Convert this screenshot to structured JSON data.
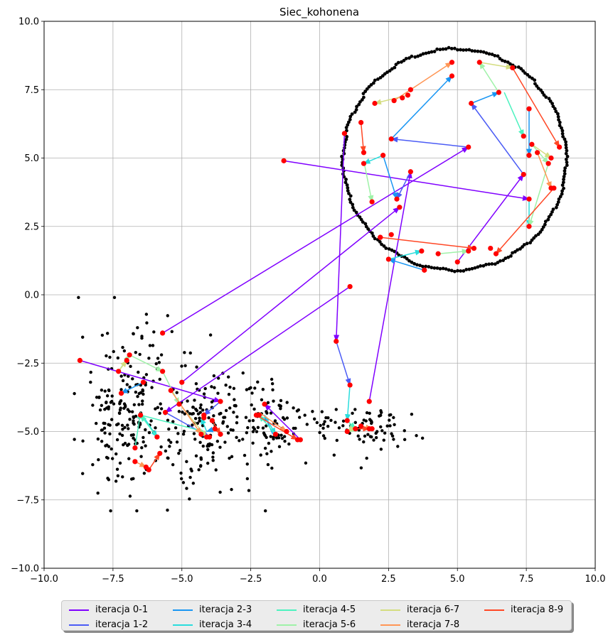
{
  "chart_data": {
    "type": "scatter",
    "title": "Siec_kohonena",
    "xlim": [
      -10,
      10
    ],
    "ylim": [
      -10,
      10
    ],
    "xticks": [
      -10,
      -7.5,
      -5,
      -2.5,
      0,
      2.5,
      5,
      7.5,
      10
    ],
    "yticks": [
      -10,
      -7.5,
      -5,
      -2.5,
      0,
      2.5,
      5,
      7.5,
      10
    ],
    "xtick_labels": [
      "−10.0",
      "−7.5",
      "−5.0",
      "−2.5",
      "0.0",
      "2.5",
      "5.0",
      "7.5",
      "10.0"
    ],
    "ytick_labels": [
      "−10.0",
      "−7.5",
      "−5.0",
      "−2.5",
      "0.0",
      "2.5",
      "5.0",
      "7.5",
      "10.0"
    ],
    "grid": true,
    "legend_position": "bottom-center",
    "ring": {
      "center": [
        4.9,
        4.95
      ],
      "radius": 4.05,
      "n_points": 240,
      "color": "#000000"
    },
    "cluster": {
      "n_points": 520,
      "color": "#000000",
      "seed": 7,
      "blobs": [
        {
          "cx": -7.0,
          "cy": -4.2,
          "sx": 0.85,
          "sy": 1.55,
          "n": 200
        },
        {
          "cx": -4.2,
          "cy": -4.7,
          "sx": 0.9,
          "sy": 1.05,
          "n": 150
        },
        {
          "cx": -1.8,
          "cy": -4.7,
          "sx": 0.75,
          "sy": 0.8,
          "n": 90
        },
        {
          "cx": 1.5,
          "cy": -4.9,
          "sx": 1.0,
          "sy": 0.45,
          "n": 80
        }
      ]
    },
    "neuron_color": "#ff0000",
    "series": [
      {
        "name": "iteracja 0-1",
        "color": "#8000ff",
        "segments": [
          [
            [
              -1.3,
              4.9
            ],
            [
              7.6,
              3.5
            ]
          ],
          [
            [
              1.8,
              -3.9
            ],
            [
              3.3,
              4.5
            ]
          ],
          [
            [
              -5.7,
              -1.4
            ],
            [
              5.4,
              5.4
            ]
          ],
          [
            [
              -5.0,
              -3.2
            ],
            [
              2.9,
              3.2
            ]
          ],
          [
            [
              1.1,
              0.3
            ],
            [
              -5.6,
              -4.3
            ]
          ],
          [
            [
              0.9,
              5.9
            ],
            [
              0.6,
              -1.7
            ]
          ],
          [
            [
              -8.7,
              -2.4
            ],
            [
              -3.6,
              -3.9
            ]
          ],
          [
            [
              5.0,
              1.2
            ],
            [
              7.4,
              4.4
            ]
          ],
          [
            [
              -0.7,
              -5.3
            ],
            [
              -2.0,
              -4.0
            ]
          ]
        ]
      },
      {
        "name": "iteracja 1-2",
        "color": "#4b5cf5",
        "segments": [
          [
            [
              5.4,
              5.4
            ],
            [
              2.6,
              5.7
            ]
          ],
          [
            [
              7.4,
              4.4
            ],
            [
              5.5,
              7.0
            ]
          ],
          [
            [
              3.3,
              4.5
            ],
            [
              2.8,
              3.5
            ]
          ],
          [
            [
              0.6,
              -1.7
            ],
            [
              1.1,
              -3.3
            ]
          ],
          [
            [
              -5.6,
              -4.3
            ],
            [
              -4.0,
              -5.2
            ]
          ],
          [
            [
              -3.6,
              -3.9
            ],
            [
              -4.2,
              -4.4
            ]
          ]
        ]
      },
      {
        "name": "iteracja 2-3",
        "color": "#1996f3",
        "segments": [
          [
            [
              2.6,
              5.7
            ],
            [
              4.8,
              8.0
            ]
          ],
          [
            [
              5.5,
              7.0
            ],
            [
              6.5,
              7.4
            ]
          ],
          [
            [
              7.6,
              6.8
            ],
            [
              7.6,
              5.1
            ]
          ],
          [
            [
              2.3,
              5.1
            ],
            [
              2.8,
              3.5
            ]
          ],
          [
            [
              3.8,
              0.9
            ],
            [
              2.5,
              1.3
            ]
          ],
          [
            [
              -6.4,
              -3.2
            ],
            [
              -7.2,
              -3.6
            ]
          ],
          [
            [
              -3.8,
              -4.9
            ],
            [
              -4.1,
              -5.0
            ]
          ],
          [
            [
              -1.7,
              -5.1
            ],
            [
              -2.0,
              -4.4
            ]
          ]
        ]
      },
      {
        "name": "iteracja 3-4",
        "color": "#2adddd",
        "segments": [
          [
            [
              1.1,
              -3.3
            ],
            [
              1.0,
              -4.6
            ]
          ],
          [
            [
              2.3,
              5.1
            ],
            [
              1.6,
              4.8
            ]
          ],
          [
            [
              7.6,
              3.5
            ],
            [
              7.6,
              2.5
            ]
          ],
          [
            [
              2.5,
              1.3
            ],
            [
              3.7,
              1.6
            ]
          ],
          [
            [
              -6.5,
              -4.3
            ],
            [
              -5.9,
              -5.2
            ]
          ],
          [
            [
              -4.1,
              -5.0
            ],
            [
              -4.3,
              -4.5
            ]
          ],
          [
            [
              -2.0,
              -4.4
            ],
            [
              -1.6,
              -5.1
            ]
          ]
        ]
      },
      {
        "name": "iteracja 4-5",
        "color": "#4df2bf",
        "segments": [
          [
            [
              6.7,
              7.4
            ],
            [
              7.4,
              5.8
            ]
          ],
          [
            [
              -6.7,
              -5.6
            ],
            [
              -6.5,
              -4.3
            ]
          ],
          [
            [
              -5.9,
              -5.2
            ],
            [
              -6.5,
              -4.4
            ]
          ],
          [
            [
              -6.5,
              -4.4
            ],
            [
              -4.2,
              -5.0
            ]
          ],
          [
            [
              -1.6,
              -5.1
            ],
            [
              -2.2,
              -4.4
            ]
          ],
          [
            [
              1.0,
              -4.6
            ],
            [
              1.3,
              -4.9
            ]
          ]
        ]
      },
      {
        "name": "iteracja 5-6",
        "color": "#9ff2a8",
        "segments": [
          [
            [
              -7.3,
              -2.8
            ],
            [
              -6.9,
              -2.2
            ]
          ],
          [
            [
              -6.9,
              -2.2
            ],
            [
              -5.7,
              -2.8
            ]
          ],
          [
            [
              -5.7,
              -2.8
            ],
            [
              -5.1,
              -4.0
            ]
          ],
          [
            [
              7.7,
              5.5
            ],
            [
              8.3,
              4.8
            ]
          ],
          [
            [
              8.3,
              4.8
            ],
            [
              7.6,
              2.5
            ]
          ],
          [
            [
              1.6,
              4.9
            ],
            [
              1.9,
              3.4
            ]
          ],
          [
            [
              6.5,
              7.4
            ],
            [
              5.8,
              8.5
            ]
          ],
          [
            [
              4.3,
              1.5
            ],
            [
              5.4,
              1.6
            ]
          ],
          [
            [
              1.3,
              -4.9
            ],
            [
              1.1,
              -5.0
            ]
          ]
        ]
      },
      {
        "name": "iteracja 6-7",
        "color": "#d4dd80",
        "segments": [
          [
            [
              5.8,
              8.5
            ],
            [
              7.0,
              8.3
            ]
          ],
          [
            [
              7.7,
              5.5
            ],
            [
              8.4,
              5.0
            ]
          ],
          [
            [
              -5.0,
              -4.1
            ],
            [
              -4.1,
              -5.2
            ]
          ],
          [
            [
              3.2,
              7.3
            ],
            [
              2.0,
              7.0
            ]
          ],
          [
            [
              -7.3,
              -2.8
            ],
            [
              -7.0,
              -2.4
            ]
          ],
          [
            [
              1.3,
              -4.8
            ],
            [
              1.0,
              -5.0
            ]
          ]
        ]
      },
      {
        "name": "iteracja 7-8",
        "color": "#ff9655",
        "segments": [
          [
            [
              2.7,
              7.1
            ],
            [
              4.8,
              8.5
            ]
          ],
          [
            [
              7.9,
              5.2
            ],
            [
              8.4,
              3.9
            ]
          ],
          [
            [
              -5.4,
              -3.5
            ],
            [
              -4.3,
              -5.1
            ]
          ],
          [
            [
              -6.7,
              -6.1
            ],
            [
              -6.3,
              -6.3
            ]
          ],
          [
            [
              -2.2,
              -4.3
            ],
            [
              -1.2,
              -5.0
            ]
          ],
          [
            [
              1.5,
              -4.8
            ],
            [
              1.9,
              -4.9
            ]
          ]
        ]
      },
      {
        "name": "iteracja 8-9",
        "color": "#ff4725",
        "segments": [
          [
            [
              7.0,
              8.3
            ],
            [
              8.7,
              5.4
            ]
          ],
          [
            [
              8.5,
              3.9
            ],
            [
              6.4,
              1.5
            ]
          ],
          [
            [
              2.2,
              2.1
            ],
            [
              5.6,
              1.7
            ]
          ],
          [
            [
              1.5,
              6.3
            ],
            [
              1.6,
              5.2
            ]
          ],
          [
            [
              -6.2,
              -6.4
            ],
            [
              -5.8,
              -5.8
            ]
          ],
          [
            [
              -3.9,
              -4.6
            ],
            [
              -3.6,
              -5.1
            ]
          ],
          [
            [
              -2.3,
              -4.4
            ],
            [
              -0.8,
              -5.3
            ]
          ],
          [
            [
              1.2,
              -4.9
            ],
            [
              1.8,
              -4.9
            ]
          ]
        ]
      }
    ],
    "neurons": [
      [
        -1.3,
        4.9
      ],
      [
        7.6,
        3.5
      ],
      [
        1.8,
        -3.9
      ],
      [
        3.3,
        4.5
      ],
      [
        -5.7,
        -1.4
      ],
      [
        5.4,
        5.4
      ],
      [
        -5.0,
        -3.2
      ],
      [
        2.9,
        3.2
      ],
      [
        1.1,
        0.3
      ],
      [
        -5.6,
        -4.3
      ],
      [
        0.9,
        5.9
      ],
      [
        0.6,
        -1.7
      ],
      [
        -8.7,
        -2.4
      ],
      [
        -3.6,
        -3.9
      ],
      [
        5.0,
        1.2
      ],
      [
        7.4,
        4.4
      ],
      [
        -0.7,
        -5.3
      ],
      [
        -2.0,
        -4.0
      ],
      [
        2.6,
        5.7
      ],
      [
        5.5,
        7.0
      ],
      [
        2.8,
        3.5
      ],
      [
        1.1,
        -3.3
      ],
      [
        -4.0,
        -5.2
      ],
      [
        -4.2,
        -4.4
      ],
      [
        4.8,
        8.0
      ],
      [
        6.5,
        7.4
      ],
      [
        7.6,
        6.8
      ],
      [
        7.6,
        5.1
      ],
      [
        2.3,
        5.1
      ],
      [
        3.8,
        0.9
      ],
      [
        2.5,
        1.3
      ],
      [
        -6.4,
        -3.2
      ],
      [
        -7.2,
        -3.6
      ],
      [
        -3.8,
        -4.9
      ],
      [
        1.0,
        -4.6
      ],
      [
        1.6,
        4.8
      ],
      [
        7.6,
        2.5
      ],
      [
        3.7,
        1.6
      ],
      [
        -5.9,
        -5.2
      ],
      [
        -1.6,
        -5.1
      ],
      [
        7.4,
        5.8
      ],
      [
        -6.7,
        -5.6
      ],
      [
        -6.5,
        -4.4
      ],
      [
        -2.2,
        -4.4
      ],
      [
        1.3,
        -4.9
      ],
      [
        -7.3,
        -2.8
      ],
      [
        -6.9,
        -2.2
      ],
      [
        -5.7,
        -2.8
      ],
      [
        -5.1,
        -4.0
      ],
      [
        7.7,
        5.5
      ],
      [
        8.3,
        4.8
      ],
      [
        1.9,
        3.4
      ],
      [
        5.8,
        8.5
      ],
      [
        4.3,
        1.5
      ],
      [
        5.4,
        1.6
      ],
      [
        7.0,
        8.3
      ],
      [
        8.4,
        5.0
      ],
      [
        -4.1,
        -5.2
      ],
      [
        3.2,
        7.3
      ],
      [
        2.0,
        7.0
      ],
      [
        -7.0,
        -2.4
      ],
      [
        1.0,
        -5.0
      ],
      [
        2.7,
        7.1
      ],
      [
        4.8,
        8.5
      ],
      [
        7.9,
        5.2
      ],
      [
        8.4,
        3.9
      ],
      [
        -5.4,
        -3.5
      ],
      [
        -4.3,
        -5.1
      ],
      [
        -6.7,
        -6.1
      ],
      [
        -6.3,
        -6.3
      ],
      [
        -1.2,
        -5.0
      ],
      [
        1.5,
        -4.8
      ],
      [
        1.9,
        -4.9
      ],
      [
        8.7,
        5.4
      ],
      [
        8.5,
        3.9
      ],
      [
        6.4,
        1.5
      ],
      [
        2.2,
        2.1
      ],
      [
        5.6,
        1.7
      ],
      [
        1.5,
        6.3
      ],
      [
        1.6,
        5.2
      ],
      [
        -6.2,
        -6.4
      ],
      [
        -5.8,
        -5.8
      ],
      [
        -3.9,
        -4.6
      ],
      [
        -3.6,
        -5.1
      ],
      [
        -2.3,
        -4.4
      ],
      [
        -0.8,
        -5.3
      ],
      [
        1.8,
        -4.9
      ],
      [
        3.0,
        7.2
      ],
      [
        3.3,
        7.5
      ],
      [
        6.2,
        1.7
      ],
      [
        -4.2,
        -4.5
      ],
      [
        2.2,
        2.1
      ],
      [
        2.6,
        2.2
      ]
    ]
  }
}
